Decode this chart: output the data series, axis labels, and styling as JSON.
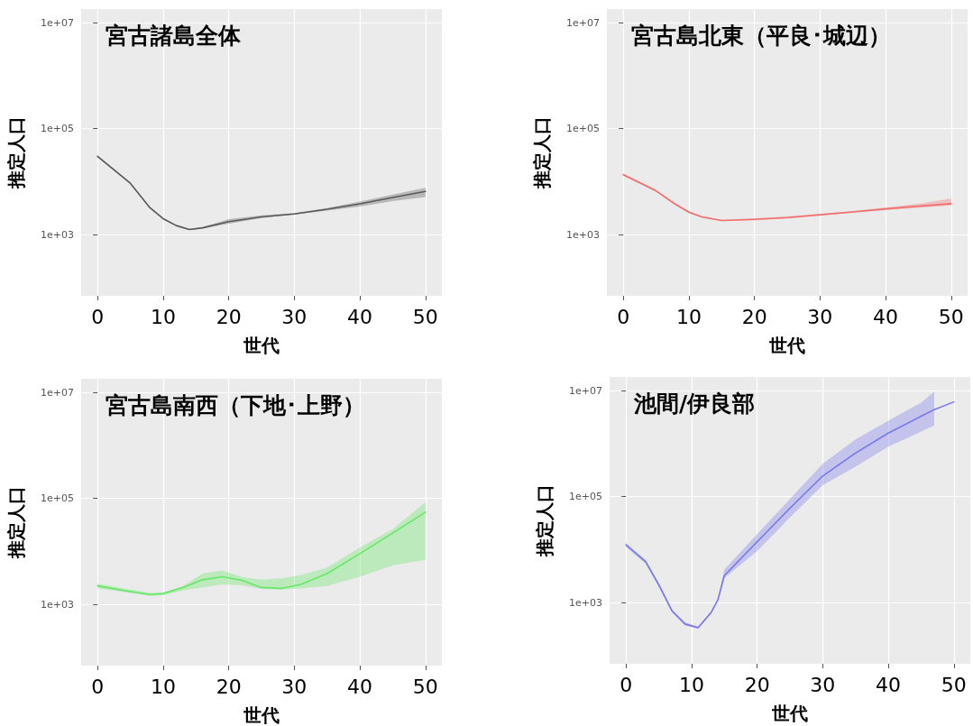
{
  "chart_data": [
    {
      "type": "line",
      "title": "宮古諸島全体",
      "xlabel": "世代",
      "ylabel": "推定人口",
      "log": true,
      "grid": true,
      "xlim": [
        -2.5,
        52.5
      ],
      "xticks": [
        0,
        10,
        20,
        30,
        40,
        50
      ],
      "ylim": [
        70,
        18000000
      ],
      "yticks": [
        {
          "value": 1000,
          "label": "1e+03"
        },
        {
          "value": 100000,
          "label": "1e+05"
        },
        {
          "value": 10000000,
          "label": "1e+07"
        }
      ],
      "x": [
        0,
        5,
        8,
        10,
        12,
        14,
        16,
        20,
        25,
        30,
        35,
        40,
        45,
        50
      ],
      "series": [
        {
          "color": "#595959",
          "values": [
            30000,
            9300,
            3200,
            2000,
            1480,
            1250,
            1340,
            1750,
            2150,
            2450,
            3000,
            3800,
            5000,
            6500
          ],
          "lower": [
            29000,
            9000,
            3100,
            1950,
            1440,
            1220,
            1300,
            1600,
            2050,
            2400,
            2850,
            3400,
            4300,
            5100
          ],
          "upper": [
            31000,
            9600,
            3300,
            2050,
            1520,
            1280,
            1380,
            1950,
            2300,
            2550,
            3150,
            4200,
            5700,
            7600
          ]
        }
      ]
    },
    {
      "type": "line",
      "title": "宮古島北東（平良･城辺）",
      "xlabel": "世代",
      "ylabel": "推定人口",
      "log": true,
      "grid": true,
      "xlim": [
        -2.5,
        52.5
      ],
      "xticks": [
        0,
        10,
        20,
        30,
        40,
        50
      ],
      "ylim": [
        70,
        18000000
      ],
      "yticks": [
        {
          "value": 1000,
          "label": "1e+03"
        },
        {
          "value": 100000,
          "label": "1e+05"
        },
        {
          "value": 10000000,
          "label": "1e+07"
        }
      ],
      "x": [
        0,
        5,
        8,
        10,
        12,
        15,
        20,
        25,
        30,
        35,
        40,
        45,
        50
      ],
      "series": [
        {
          "color": "#f07070",
          "values": [
            13500,
            6700,
            3700,
            2650,
            2150,
            1840,
            1940,
            2100,
            2370,
            2670,
            3050,
            3440,
            3820
          ],
          "lower": [
            12800,
            6400,
            3550,
            2550,
            2080,
            1790,
            1860,
            2010,
            2280,
            2570,
            2900,
            3200,
            3570
          ],
          "upper": [
            14300,
            7000,
            3850,
            2750,
            2220,
            1890,
            2030,
            2190,
            2460,
            2780,
            3250,
            3800,
            4800
          ]
        }
      ]
    },
    {
      "type": "line",
      "title": "宮古島南西（下地･上野）",
      "xlabel": "世代",
      "ylabel": "推定人口",
      "log": true,
      "grid": true,
      "xlim": [
        -2.5,
        52.5
      ],
      "xticks": [
        0,
        10,
        20,
        30,
        40,
        50
      ],
      "ylim": [
        70,
        18000000
      ],
      "yticks": [
        {
          "value": 1000,
          "label": "1e+03"
        },
        {
          "value": 100000,
          "label": "1e+05"
        },
        {
          "value": 10000000,
          "label": "1e+07"
        }
      ],
      "x": [
        0,
        4,
        8,
        10,
        13,
        16,
        19,
        22,
        25,
        28,
        31,
        35,
        40,
        45,
        50
      ],
      "series": [
        {
          "color": "#66e866",
          "values": [
            2230,
            1820,
            1530,
            1600,
            2080,
            2910,
            3320,
            2830,
            2080,
            2000,
            2380,
            3800,
            9050,
            22100,
            55000
          ],
          "lower": [
            2000,
            1700,
            1450,
            1490,
            1820,
            2080,
            2380,
            2290,
            1950,
            1900,
            2000,
            2230,
            3320,
            5400,
            6900
          ],
          "upper": [
            2480,
            2000,
            1660,
            1660,
            2230,
            3800,
            4350,
            3300,
            2910,
            3100,
            3550,
            4950,
            11800,
            26300,
            85000
          ]
        }
      ]
    },
    {
      "type": "line",
      "title": "池間/伊良部",
      "xlabel": "世代",
      "ylabel": "推定人口",
      "log": true,
      "grid": true,
      "xlim": [
        -2.5,
        52.5
      ],
      "xticks": [
        0,
        10,
        20,
        30,
        40,
        50
      ],
      "ylim": [
        70,
        18000000
      ],
      "yticks": [
        {
          "value": 1000,
          "label": "1e+03"
        },
        {
          "value": 100000,
          "label": "1e+05"
        },
        {
          "value": 10000000,
          "label": "1e+07"
        }
      ],
      "x": [
        0,
        3,
        5,
        7,
        9,
        11,
        13,
        14,
        15,
        20,
        25,
        30,
        35,
        40,
        45,
        47,
        50
      ],
      "series": [
        {
          "color": "#7777ee",
          "values": [
            12200,
            5870,
            2160,
            700,
            394,
            336,
            653,
            1110,
            3230,
            14000,
            60300,
            244000,
            662000,
            1570000,
            3270000,
            4370000,
            6100000
          ],
          "lower": [
            11200,
            5400,
            2000,
            650,
            370,
            320,
            620,
            1050,
            2900,
            9350,
            40500,
            163000,
            366000,
            870000,
            1680000,
            2200000,
            null
          ],
          "upper": [
            13300,
            6400,
            2330,
            750,
            420,
            355,
            690,
            1170,
            4200,
            19500,
            90000,
            416000,
            1200000,
            2700000,
            5900000,
            9500000,
            null
          ]
        }
      ]
    }
  ]
}
